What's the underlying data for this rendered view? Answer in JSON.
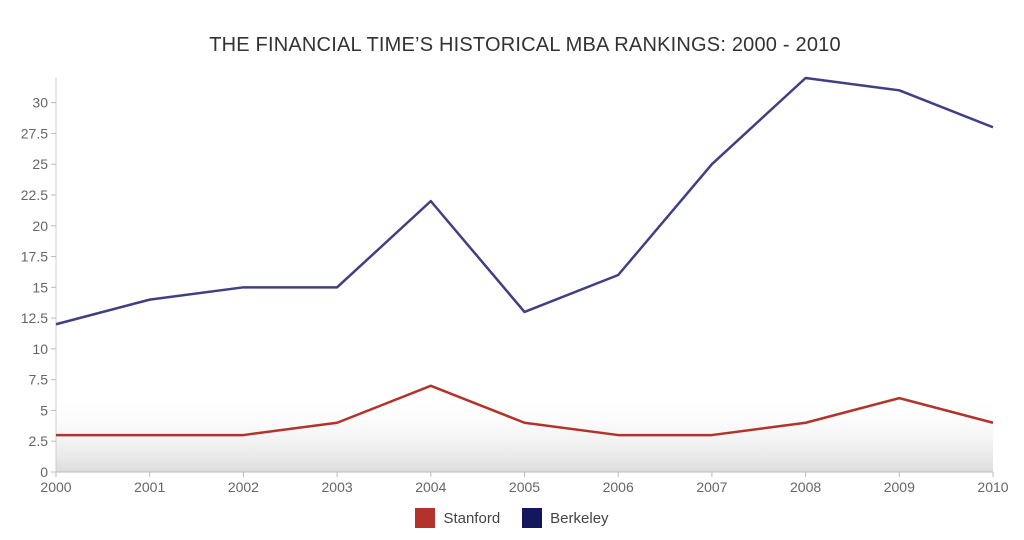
{
  "chart_data": {
    "type": "line",
    "title": "THE FINANCIAL TIME’S HISTORICAL MBA RANKINGS: 2000 - 2010",
    "x": [
      "2000",
      "2001",
      "2002",
      "2003",
      "2004",
      "2005",
      "2006",
      "2007",
      "2008",
      "2009",
      "2010"
    ],
    "yticks": [
      "0",
      "2.5",
      "5",
      "7.5",
      "10",
      "12.5",
      "15",
      "17.5",
      "20",
      "22.5",
      "25",
      "27.5",
      "30"
    ],
    "ylim": [
      0,
      32
    ],
    "grid": false,
    "legend_position": "bottom",
    "series": [
      {
        "name": "Stanford",
        "color": "#b3332b",
        "values": [
          3,
          3,
          3,
          4,
          7,
          4,
          3,
          3,
          4,
          6,
          4
        ]
      },
      {
        "name": "Berkeley",
        "color": "#3f3f82",
        "values": [
          12,
          14,
          15,
          15,
          22,
          13,
          16,
          25,
          32,
          31,
          28
        ]
      }
    ],
    "legend_colors": {
      "Stanford": "#b3332b",
      "Berkeley": "#13175e"
    }
  }
}
